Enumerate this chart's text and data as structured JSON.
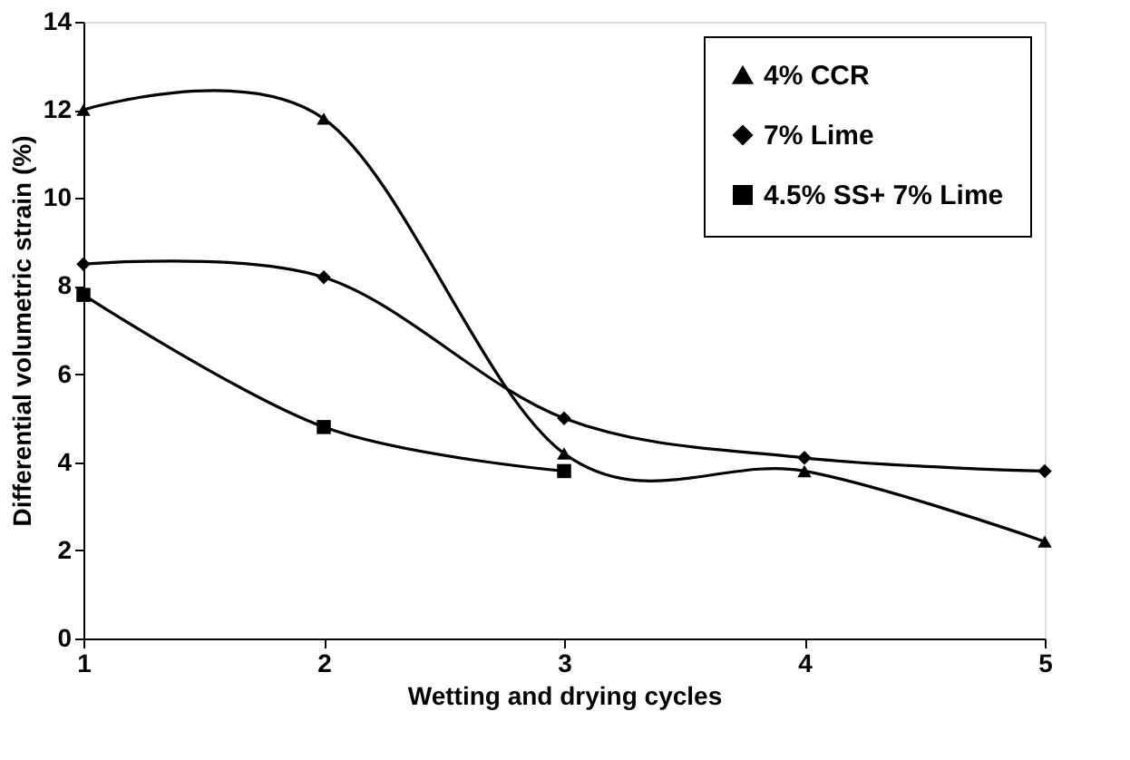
{
  "chart_data": {
    "type": "line",
    "xlabel": "Wetting and drying cycles",
    "ylabel": "Differential volumetric strain  (%)",
    "x": [
      1,
      2,
      3,
      4,
      5
    ],
    "series": [
      {
        "name": "4% CCR",
        "color": "#000000",
        "marker": "triangle",
        "values": [
          12.0,
          11.8,
          4.2,
          3.8,
          2.2
        ]
      },
      {
        "name": "7% Lime",
        "color": "#000000",
        "marker": "diamond",
        "values": [
          8.5,
          8.2,
          5.0,
          4.1,
          3.8
        ]
      },
      {
        "name": "4.5% SS+ 7% Lime",
        "color": "#000000",
        "marker": "square",
        "x": [
          1,
          2,
          3
        ],
        "values": [
          7.8,
          4.8,
          3.8
        ]
      }
    ],
    "xlim": [
      1,
      5
    ],
    "xticks": [
      1,
      2,
      3,
      4,
      5
    ],
    "ylim": [
      0,
      14
    ],
    "yticks": [
      0,
      2,
      4,
      6,
      8,
      10,
      12,
      14
    ],
    "grid": false,
    "legend": "top right",
    "line_style": "solid"
  }
}
